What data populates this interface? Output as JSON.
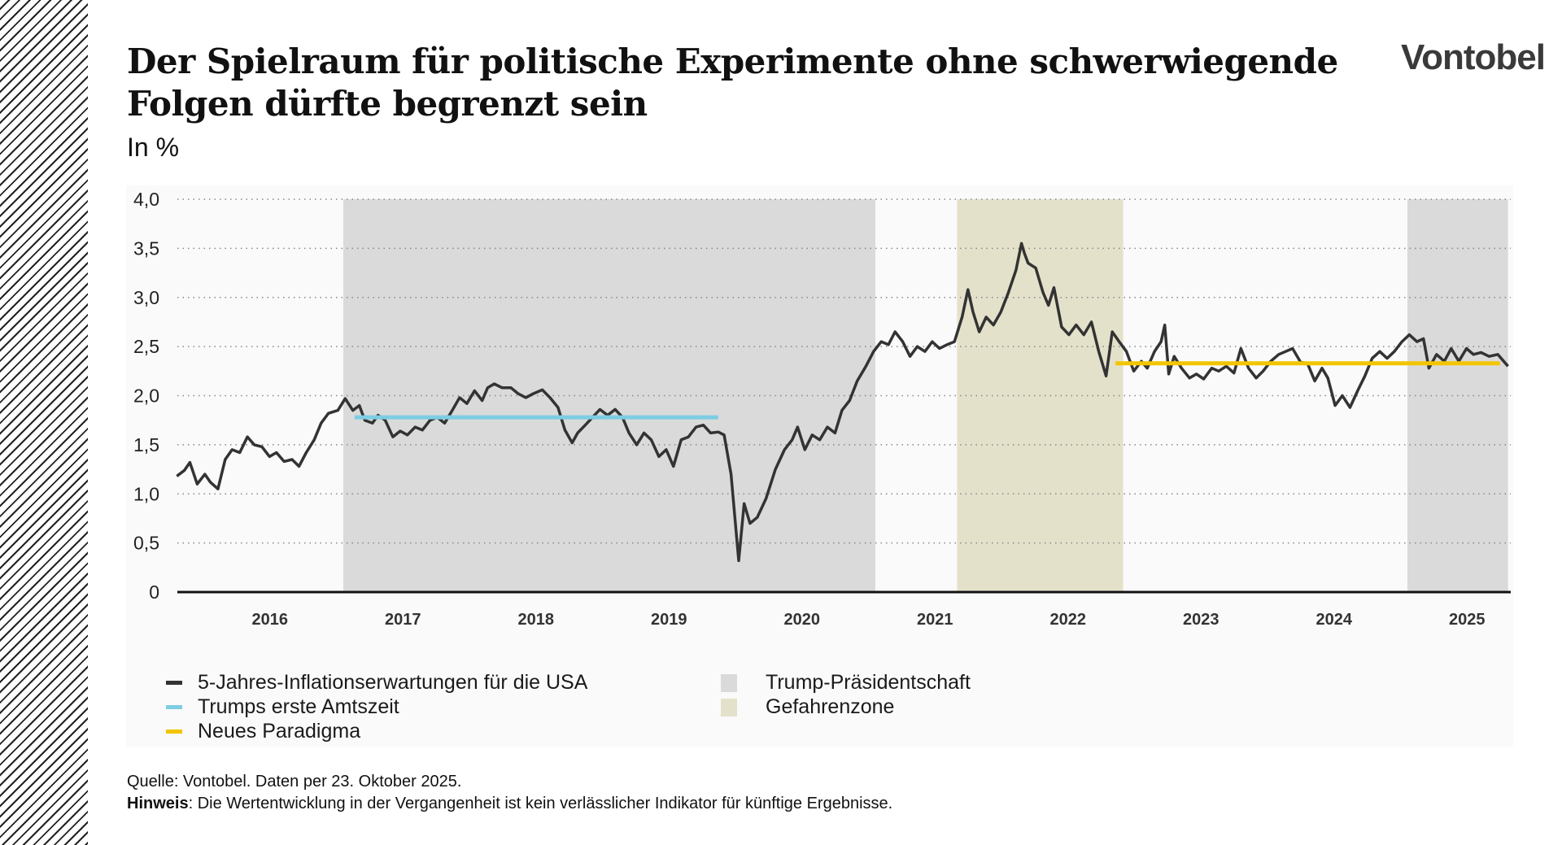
{
  "title": "Der Spielraum für politische Experimente ohne schwerwiegende Folgen dürfte begrenzt sein",
  "unit_label": "In %",
  "logo": "Vontobel",
  "legend": {
    "series": "5-Jahres-Inflationserwartungen für die USA",
    "first_term": "Trumps erste Amtszeit",
    "paradigm": "Neues Paradigma",
    "presidency": "Trump-Präsidentschaft",
    "danger": "Gefahrenzone"
  },
  "footer": {
    "source": "Quelle: Vontobel. Daten per 23. Oktober 2025.",
    "note_label": "Hinweis",
    "note_text": ": Die Wertentwicklung in der Vergangenheit ist kein verlässlicher Indikator für künftige Ergebnisse."
  },
  "colors": {
    "series": "#333333",
    "first_term": "#7dcde3",
    "paradigm": "#f2c500",
    "presidency": "#dadada",
    "danger": "#e4e1cb"
  },
  "chart_data": {
    "type": "line",
    "title": "Der Spielraum für politische Experimente ohne schwerwiegende Folgen dürfte begrenzt sein",
    "ylabel": "In %",
    "ylim": [
      0,
      4.0
    ],
    "yticks": [
      "0",
      "0,5",
      "1,0",
      "1,5",
      "2,0",
      "2,5",
      "3,0",
      "3,5",
      "4,0"
    ],
    "xticks": [
      "2016",
      "2017",
      "2018",
      "2019",
      "2020",
      "2021",
      "2022",
      "2023",
      "2024",
      "2025"
    ],
    "grid": "horizontal dotted",
    "legend_position": "bottom",
    "series": [
      {
        "name": "5-Jahres-Inflationserwartungen für die USA",
        "points": [
          [
            "2015-10-20",
            1.18
          ],
          [
            "2015-11-10",
            1.24
          ],
          [
            "2015-11-25",
            1.32
          ],
          [
            "2015-12-15",
            1.1
          ],
          [
            "2016-01-05",
            1.2
          ],
          [
            "2016-01-20",
            1.12
          ],
          [
            "2016-02-10",
            1.05
          ],
          [
            "2016-03-01",
            1.35
          ],
          [
            "2016-03-20",
            1.45
          ],
          [
            "2016-04-10",
            1.42
          ],
          [
            "2016-05-01",
            1.58
          ],
          [
            "2016-05-20",
            1.5
          ],
          [
            "2016-06-10",
            1.48
          ],
          [
            "2016-07-01",
            1.38
          ],
          [
            "2016-07-20",
            1.42
          ],
          [
            "2016-08-10",
            1.33
          ],
          [
            "2016-09-01",
            1.35
          ],
          [
            "2016-09-20",
            1.28
          ],
          [
            "2016-10-10",
            1.42
          ],
          [
            "2016-11-01",
            1.55
          ],
          [
            "2016-11-20",
            1.72
          ],
          [
            "2016-12-10",
            1.82
          ],
          [
            "2017-01-05",
            1.85
          ],
          [
            "2017-01-25",
            1.97
          ],
          [
            "2017-02-15",
            1.85
          ],
          [
            "2017-03-05",
            1.9
          ],
          [
            "2017-03-20",
            1.75
          ],
          [
            "2017-04-10",
            1.72
          ],
          [
            "2017-04-25",
            1.8
          ],
          [
            "2017-05-15",
            1.75
          ],
          [
            "2017-06-05",
            1.58
          ],
          [
            "2017-06-25",
            1.64
          ],
          [
            "2017-07-15",
            1.6
          ],
          [
            "2017-08-05",
            1.68
          ],
          [
            "2017-08-25",
            1.65
          ],
          [
            "2017-09-15",
            1.75
          ],
          [
            "2017-10-05",
            1.78
          ],
          [
            "2017-10-25",
            1.72
          ],
          [
            "2017-11-15",
            1.85
          ],
          [
            "2017-12-05",
            1.98
          ],
          [
            "2017-12-25",
            1.92
          ],
          [
            "2018-01-15",
            2.05
          ],
          [
            "2018-02-05",
            1.95
          ],
          [
            "2018-02-20",
            2.08
          ],
          [
            "2018-03-10",
            2.12
          ],
          [
            "2018-04-01",
            2.08
          ],
          [
            "2018-04-25",
            2.08
          ],
          [
            "2018-05-15",
            2.02
          ],
          [
            "2018-06-05",
            1.98
          ],
          [
            "2018-06-25",
            2.02
          ],
          [
            "2018-07-20",
            2.06
          ],
          [
            "2018-08-10",
            1.98
          ],
          [
            "2018-09-01",
            1.88
          ],
          [
            "2018-09-20",
            1.65
          ],
          [
            "2018-10-10",
            1.52
          ],
          [
            "2018-10-25",
            1.62
          ],
          [
            "2018-11-15",
            1.7
          ],
          [
            "2018-12-05",
            1.78
          ],
          [
            "2018-12-25",
            1.86
          ],
          [
            "2019-01-15",
            1.8
          ],
          [
            "2019-02-05",
            1.86
          ],
          [
            "2019-02-25",
            1.78
          ],
          [
            "2019-03-15",
            1.62
          ],
          [
            "2019-04-05",
            1.5
          ],
          [
            "2019-04-25",
            1.62
          ],
          [
            "2019-05-15",
            1.55
          ],
          [
            "2019-06-05",
            1.38
          ],
          [
            "2019-06-25",
            1.45
          ],
          [
            "2019-07-15",
            1.28
          ],
          [
            "2019-08-05",
            1.55
          ],
          [
            "2019-08-25",
            1.58
          ],
          [
            "2019-09-15",
            1.68
          ],
          [
            "2019-10-05",
            1.7
          ],
          [
            "2019-10-25",
            1.62
          ],
          [
            "2019-11-15",
            1.63
          ],
          [
            "2019-12-01",
            1.6
          ],
          [
            "2019-12-20",
            1.2
          ],
          [
            "2020-01-10",
            0.32
          ],
          [
            "2020-01-25",
            0.9
          ],
          [
            "2020-02-10",
            0.7
          ],
          [
            "2020-03-01",
            0.76
          ],
          [
            "2020-03-25",
            0.95
          ],
          [
            "2020-04-20",
            1.25
          ],
          [
            "2020-05-15",
            1.45
          ],
          [
            "2020-06-05",
            1.55
          ],
          [
            "2020-06-20",
            1.68
          ],
          [
            "2020-07-10",
            1.45
          ],
          [
            "2020-07-30",
            1.6
          ],
          [
            "2020-08-20",
            1.55
          ],
          [
            "2020-09-10",
            1.68
          ],
          [
            "2020-10-01",
            1.62
          ],
          [
            "2020-10-20",
            1.85
          ],
          [
            "2020-11-10",
            1.95
          ],
          [
            "2020-12-01",
            2.15
          ],
          [
            "2020-12-25",
            2.3
          ],
          [
            "2021-01-15",
            2.45
          ],
          [
            "2021-02-05",
            2.55
          ],
          [
            "2021-02-25",
            2.52
          ],
          [
            "2021-03-15",
            2.65
          ],
          [
            "2021-04-05",
            2.55
          ],
          [
            "2021-04-25",
            2.4
          ],
          [
            "2021-05-15",
            2.5
          ],
          [
            "2021-06-05",
            2.45
          ],
          [
            "2021-06-25",
            2.55
          ],
          [
            "2021-07-15",
            2.48
          ],
          [
            "2021-08-05",
            2.52
          ],
          [
            "2021-08-25",
            2.55
          ],
          [
            "2021-09-15",
            2.8
          ],
          [
            "2021-10-01",
            3.08
          ],
          [
            "2021-10-15",
            2.85
          ],
          [
            "2021-11-01",
            2.65
          ],
          [
            "2021-11-20",
            2.8
          ],
          [
            "2021-12-10",
            2.72
          ],
          [
            "2021-12-30",
            2.85
          ],
          [
            "2022-01-20",
            3.05
          ],
          [
            "2022-02-10",
            3.28
          ],
          [
            "2022-02-25",
            3.55
          ],
          [
            "2022-03-05",
            3.45
          ],
          [
            "2022-03-15",
            3.35
          ],
          [
            "2022-04-05",
            3.3
          ],
          [
            "2022-04-25",
            3.05
          ],
          [
            "2022-05-10",
            2.92
          ],
          [
            "2022-05-25",
            3.1
          ],
          [
            "2022-06-15",
            2.7
          ],
          [
            "2022-07-05",
            2.62
          ],
          [
            "2022-07-25",
            2.72
          ],
          [
            "2022-08-15",
            2.62
          ],
          [
            "2022-09-05",
            2.75
          ],
          [
            "2022-09-25",
            2.45
          ],
          [
            "2022-10-15",
            2.2
          ],
          [
            "2022-11-01",
            2.65
          ],
          [
            "2022-11-20",
            2.55
          ],
          [
            "2022-12-10",
            2.45
          ],
          [
            "2022-12-30",
            2.25
          ],
          [
            "2023-01-20",
            2.35
          ],
          [
            "2023-02-05",
            2.28
          ],
          [
            "2023-02-25",
            2.45
          ],
          [
            "2023-03-15",
            2.55
          ],
          [
            "2023-03-25",
            2.72
          ],
          [
            "2023-04-05",
            2.22
          ],
          [
            "2023-04-20",
            2.4
          ],
          [
            "2023-05-10",
            2.28
          ],
          [
            "2023-06-01",
            2.18
          ],
          [
            "2023-06-20",
            2.22
          ],
          [
            "2023-07-10",
            2.17
          ],
          [
            "2023-08-01",
            2.28
          ],
          [
            "2023-08-20",
            2.25
          ],
          [
            "2023-09-10",
            2.3
          ],
          [
            "2023-10-01",
            2.23
          ],
          [
            "2023-10-20",
            2.48
          ],
          [
            "2023-11-10",
            2.28
          ],
          [
            "2023-12-01",
            2.18
          ],
          [
            "2023-12-20",
            2.25
          ],
          [
            "2024-01-10",
            2.35
          ],
          [
            "2024-02-01",
            2.42
          ],
          [
            "2024-02-20",
            2.45
          ],
          [
            "2024-03-10",
            2.48
          ],
          [
            "2024-04-01",
            2.34
          ],
          [
            "2024-04-20",
            2.33
          ],
          [
            "2024-05-10",
            2.15
          ],
          [
            "2024-05-30",
            2.28
          ],
          [
            "2024-06-15",
            2.18
          ],
          [
            "2024-07-05",
            1.9
          ],
          [
            "2024-07-25",
            2.0
          ],
          [
            "2024-08-15",
            1.88
          ],
          [
            "2024-09-05",
            2.05
          ],
          [
            "2024-09-25",
            2.2
          ],
          [
            "2024-10-15",
            2.38
          ],
          [
            "2024-11-05",
            2.45
          ],
          [
            "2024-11-25",
            2.38
          ],
          [
            "2024-12-15",
            2.45
          ],
          [
            "2025-01-05",
            2.55
          ],
          [
            "2025-01-25",
            2.62
          ],
          [
            "2025-02-15",
            2.55
          ],
          [
            "2025-03-05",
            2.58
          ],
          [
            "2025-03-20",
            2.28
          ],
          [
            "2025-04-10",
            2.42
          ],
          [
            "2025-05-01",
            2.35
          ],
          [
            "2025-05-20",
            2.48
          ],
          [
            "2025-06-10",
            2.35
          ],
          [
            "2025-07-01",
            2.48
          ],
          [
            "2025-07-20",
            2.42
          ],
          [
            "2025-08-10",
            2.44
          ],
          [
            "2025-09-01",
            2.4
          ],
          [
            "2025-09-25",
            2.42
          ],
          [
            "2025-10-23",
            2.3
          ]
        ]
      },
      {
        "name": "Trumps erste Amtszeit",
        "points": [
          [
            "2017-02-20",
            1.78
          ],
          [
            "2019-11-15",
            1.78
          ]
        ]
      },
      {
        "name": "Neues Paradigma",
        "points": [
          [
            "2022-11-10",
            2.33
          ],
          [
            "2025-10-01",
            2.33
          ]
        ]
      }
    ],
    "shaded_regions": [
      {
        "name": "Trump-Präsidentschaft",
        "from": "2017-01-20",
        "to": "2021-01-20"
      },
      {
        "name": "Gefahrenzone",
        "from": "2021-09-01",
        "to": "2022-12-01"
      },
      {
        "name": "Trump-Präsidentschaft",
        "from": "2025-01-20",
        "to": "2025-10-23"
      }
    ]
  }
}
